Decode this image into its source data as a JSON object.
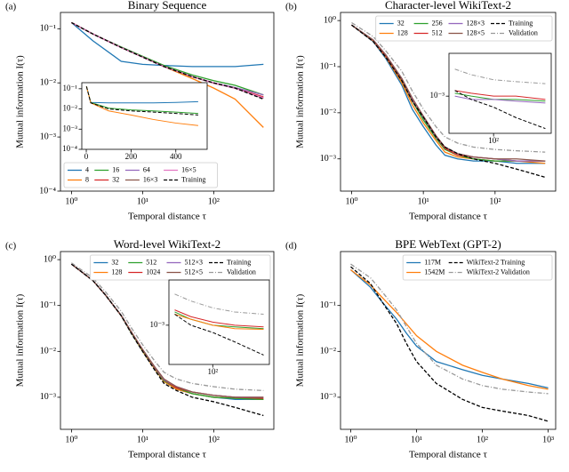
{
  "chart_data": [
    {
      "type": "line",
      "label": "(a)",
      "title": "Binary Sequence",
      "x_label": "Temporal distance τ",
      "y_label": "Mutual information I(τ)",
      "xlog": true,
      "ylog": true,
      "xlim": [
        0.7,
        700
      ],
      "ylim": [
        0.0001,
        0.2
      ],
      "xticks": [
        {
          "value": 1,
          "label": "10⁰"
        },
        {
          "value": 10,
          "label": "10¹"
        },
        {
          "value": 100,
          "label": "10²"
        }
      ],
      "yticks": [
        {
          "value": 0.1,
          "label": "10⁻¹"
        },
        {
          "value": 0.01,
          "label": "10⁻²"
        },
        {
          "value": 0.001,
          "label": "10⁻³"
        },
        {
          "value": 0.0001,
          "label": "10⁻⁴"
        }
      ],
      "legend_loc": "lower left",
      "legend_ncol": 4,
      "x": [
        1,
        2,
        5,
        10,
        20,
        50,
        100,
        200,
        500
      ],
      "series": [
        {
          "name": "4",
          "color": "#1f77b4",
          "values": [
            0.13,
            0.06,
            0.025,
            0.022,
            0.021,
            0.02,
            0.02,
            0.02,
            0.022
          ]
        },
        {
          "name": "8",
          "color": "#ff7f0e",
          "values": [
            0.13,
            0.08,
            0.045,
            0.03,
            0.02,
            0.012,
            0.008,
            0.005,
            0.0015
          ]
        },
        {
          "name": "16",
          "color": "#2ca02c",
          "values": [
            0.13,
            0.08,
            0.046,
            0.031,
            0.021,
            0.014,
            0.011,
            0.009,
            0.006
          ]
        },
        {
          "name": "32",
          "color": "#d62728",
          "values": [
            0.13,
            0.08,
            0.045,
            0.03,
            0.02,
            0.013,
            0.01,
            0.008,
            0.0055
          ]
        },
        {
          "name": "64",
          "color": "#9467bd",
          "values": [
            0.13,
            0.08,
            0.045,
            0.03,
            0.02,
            0.013,
            0.01,
            0.0082,
            0.006
          ]
        },
        {
          "name": "16×3",
          "color": "#8c564b",
          "values": [
            0.13,
            0.08,
            0.045,
            0.03,
            0.02,
            0.013,
            0.0098,
            0.008,
            0.0052
          ]
        },
        {
          "name": "16×5",
          "color": "#e377c2",
          "values": [
            0.13,
            0.08,
            0.045,
            0.03,
            0.02,
            0.013,
            0.0099,
            0.0079,
            0.0053
          ]
        },
        {
          "name": "Training",
          "color": "#000000",
          "dash": "dashed",
          "values": [
            0.13,
            0.08,
            0.045,
            0.03,
            0.02,
            0.013,
            0.01,
            0.008,
            0.005
          ]
        }
      ],
      "inset": {
        "xlog": false,
        "ylog": true,
        "xlim": [
          -20,
          540
        ],
        "ylim": [
          0.0001,
          0.2
        ],
        "xticks": [
          0,
          200,
          400
        ],
        "yticks": [
          {
            "value": 0.1,
            "label": "10⁻¹"
          },
          {
            "value": 0.01,
            "label": "10⁻²"
          },
          {
            "value": 0.001,
            "label": "10⁻³"
          },
          {
            "value": 0.0001,
            "label": "10⁻⁴"
          }
        ],
        "x": [
          1,
          20,
          100,
          200,
          300,
          400,
          500
        ],
        "series": [
          {
            "color": "#1f77b4",
            "values": [
              0.13,
              0.021,
              0.02,
              0.02,
              0.02,
              0.021,
              0.023
            ]
          },
          {
            "color": "#2ca02c",
            "values": [
              0.13,
              0.021,
              0.011,
              0.009,
              0.008,
              0.007,
              0.006
            ]
          },
          {
            "color": "#ff7f0e",
            "values": [
              0.13,
              0.02,
              0.008,
              0.005,
              0.003,
              0.002,
              0.0015
            ]
          },
          {
            "color": "#000000",
            "dash": "dashed",
            "values": [
              0.13,
              0.02,
              0.01,
              0.008,
              0.007,
              0.006,
              0.005
            ]
          }
        ]
      }
    },
    {
      "type": "line",
      "label": "(b)",
      "title": "Character-level WikiText-2",
      "x_label": "Temporal distance τ",
      "y_label": "Mutual information I(τ)",
      "xlog": true,
      "ylog": true,
      "xlim": [
        0.7,
        700
      ],
      "ylim": [
        0.0002,
        1.5
      ],
      "xticks": [
        {
          "value": 1,
          "label": "10⁰"
        },
        {
          "value": 10,
          "label": "10¹"
        },
        {
          "value": 100,
          "label": "10²"
        }
      ],
      "yticks": [
        {
          "value": 1,
          "label": "10⁰"
        },
        {
          "value": 0.1,
          "label": "10⁻¹"
        },
        {
          "value": 0.01,
          "label": "10⁻²"
        },
        {
          "value": 0.001,
          "label": "10⁻³"
        }
      ],
      "legend_loc": "upper right",
      "legend_ncol": 4,
      "x": [
        1,
        2,
        3,
        5,
        7,
        10,
        15,
        20,
        30,
        50,
        100,
        200,
        500
      ],
      "series": [
        {
          "name": "32",
          "color": "#1f77b4",
          "values": [
            0.8,
            0.35,
            0.15,
            0.04,
            0.012,
            0.005,
            0.002,
            0.0012,
            0.001,
            0.0009,
            0.0009,
            0.0008,
            0.0008
          ]
        },
        {
          "name": "128",
          "color": "#ff7f0e",
          "values": [
            0.8,
            0.36,
            0.16,
            0.045,
            0.015,
            0.006,
            0.0025,
            0.0014,
            0.0011,
            0.001,
            0.0009,
            0.0009,
            0.0008
          ]
        },
        {
          "name": "256",
          "color": "#2ca02c",
          "values": [
            0.8,
            0.37,
            0.17,
            0.05,
            0.018,
            0.007,
            0.0028,
            0.0016,
            0.0012,
            0.001,
            0.0009,
            0.0009,
            0.0009
          ]
        },
        {
          "name": "512",
          "color": "#d62728",
          "values": [
            0.8,
            0.37,
            0.17,
            0.052,
            0.019,
            0.008,
            0.003,
            0.0017,
            0.0012,
            0.0011,
            0.001,
            0.0009,
            0.0009
          ]
        },
        {
          "name": "128×3",
          "color": "#9467bd",
          "values": [
            0.8,
            0.38,
            0.18,
            0.055,
            0.02,
            0.008,
            0.003,
            0.0018,
            0.0013,
            0.0011,
            0.001,
            0.0009,
            0.0009
          ]
        },
        {
          "name": "128×5",
          "color": "#8c564b",
          "values": [
            0.8,
            0.38,
            0.18,
            0.056,
            0.021,
            0.0085,
            0.0032,
            0.0018,
            0.0013,
            0.0011,
            0.001,
            0.001,
            0.0009
          ]
        },
        {
          "name": "Training",
          "color": "#000000",
          "dash": "dashed",
          "values": [
            0.8,
            0.35,
            0.16,
            0.05,
            0.018,
            0.008,
            0.003,
            0.0018,
            0.0013,
            0.001,
            0.0008,
            0.0006,
            0.0004
          ]
        },
        {
          "name": "Validation",
          "color": "#999999",
          "dash": "dashdot",
          "values": [
            0.9,
            0.45,
            0.22,
            0.08,
            0.03,
            0.012,
            0.005,
            0.003,
            0.0022,
            0.0018,
            0.0016,
            0.0015,
            0.0014
          ]
        }
      ],
      "inset": {
        "xlog": true,
        "ylog": true,
        "xlim": [
          25,
          600
        ],
        "ylim": [
          0.0003,
          0.004
        ],
        "xticks": [
          {
            "value": 100,
            "label": "10²"
          }
        ],
        "yticks": [
          {
            "value": 0.001,
            "label": "10⁻³"
          }
        ],
        "x": [
          30,
          50,
          100,
          200,
          500
        ],
        "series": [
          {
            "color": "#999999",
            "dash": "dashdot",
            "values": [
              0.0024,
              0.002,
              0.0017,
              0.0016,
              0.0015
            ]
          },
          {
            "color": "#d62728",
            "values": [
              0.0012,
              0.0011,
              0.001,
              0.001,
              0.0009
            ]
          },
          {
            "color": "#2ca02c",
            "values": [
              0.0011,
              0.001,
              0.0009,
              0.0009,
              0.00085
            ]
          },
          {
            "color": "#9467bd",
            "values": [
              0.001,
              0.0009,
              0.0009,
              0.00085,
              0.0008
            ]
          },
          {
            "color": "#000000",
            "dash": "dashed",
            "values": [
              0.0012,
              0.0009,
              0.0007,
              0.0005,
              0.00035
            ]
          }
        ]
      }
    },
    {
      "type": "line",
      "label": "(c)",
      "title": "Word-level WikiText-2",
      "x_label": "Temporal distance τ",
      "y_label": "Mutual information I(τ)",
      "xlog": true,
      "ylog": true,
      "xlim": [
        0.7,
        700
      ],
      "ylim": [
        0.0002,
        1.5
      ],
      "xticks": [
        {
          "value": 1,
          "label": "10⁰"
        },
        {
          "value": 10,
          "label": "10¹"
        },
        {
          "value": 100,
          "label": "10²"
        }
      ],
      "yticks": [
        {
          "value": 1,
          "label": "10⁰"
        },
        {
          "value": 0.1,
          "label": "10⁻¹"
        },
        {
          "value": 0.01,
          "label": "10⁻²"
        },
        {
          "value": 0.001,
          "label": "10⁻³"
        }
      ],
      "legend_loc": "upper right",
      "legend_ncol": 4,
      "x": [
        1,
        2,
        3,
        5,
        7,
        10,
        15,
        20,
        30,
        50,
        100,
        200,
        500
      ],
      "series": [
        {
          "name": "32",
          "color": "#1f77b4",
          "values": [
            0.8,
            0.35,
            0.17,
            0.06,
            0.025,
            0.01,
            0.004,
            0.0022,
            0.0015,
            0.0012,
            0.001,
            0.0009,
            0.0009
          ]
        },
        {
          "name": "128",
          "color": "#ff7f0e",
          "values": [
            0.8,
            0.35,
            0.17,
            0.06,
            0.025,
            0.01,
            0.004,
            0.0022,
            0.0015,
            0.0012,
            0.001,
            0.00095,
            0.0009
          ]
        },
        {
          "name": "512",
          "color": "#2ca02c",
          "values": [
            0.8,
            0.35,
            0.17,
            0.06,
            0.025,
            0.0105,
            0.0042,
            0.0023,
            0.0016,
            0.0012,
            0.001,
            0.00095,
            0.0009
          ]
        },
        {
          "name": "1024",
          "color": "#d62728",
          "values": [
            0.8,
            0.35,
            0.17,
            0.06,
            0.026,
            0.011,
            0.0043,
            0.0024,
            0.0016,
            0.0013,
            0.0011,
            0.001,
            0.00095
          ]
        },
        {
          "name": "512×3",
          "color": "#9467bd",
          "values": [
            0.8,
            0.35,
            0.17,
            0.061,
            0.026,
            0.011,
            0.0044,
            0.0024,
            0.0017,
            0.0013,
            0.0011,
            0.001,
            0.001
          ]
        },
        {
          "name": "512×5",
          "color": "#8c564b",
          "values": [
            0.8,
            0.35,
            0.17,
            0.061,
            0.026,
            0.011,
            0.0045,
            0.0025,
            0.0017,
            0.0013,
            0.0011,
            0.001,
            0.001
          ]
        },
        {
          "name": "Training",
          "color": "#000000",
          "dash": "dashed",
          "values": [
            0.8,
            0.35,
            0.17,
            0.06,
            0.024,
            0.01,
            0.0038,
            0.002,
            0.0014,
            0.001,
            0.0008,
            0.0006,
            0.0004
          ]
        },
        {
          "name": "Validation",
          "color": "#999999",
          "dash": "dashdot",
          "values": [
            0.85,
            0.4,
            0.2,
            0.075,
            0.032,
            0.014,
            0.006,
            0.0035,
            0.0025,
            0.002,
            0.0017,
            0.0015,
            0.0014
          ]
        }
      ],
      "inset": {
        "xlog": true,
        "ylog": true,
        "xlim": [
          25,
          600
        ],
        "ylim": [
          0.0003,
          0.004
        ],
        "xticks": [
          {
            "value": 100,
            "label": "10²"
          }
        ],
        "yticks": [
          {
            "value": 0.001,
            "label": "10⁻³"
          }
        ],
        "x": [
          30,
          50,
          100,
          200,
          500
        ],
        "series": [
          {
            "color": "#999999",
            "dash": "dashdot",
            "values": [
              0.0026,
              0.0021,
              0.0017,
              0.0015,
              0.0014
            ]
          },
          {
            "color": "#d62728",
            "values": [
              0.0016,
              0.0013,
              0.0011,
              0.001,
              0.00095
            ]
          },
          {
            "color": "#2ca02c",
            "values": [
              0.0015,
              0.0012,
              0.001,
              0.00095,
              0.0009
            ]
          },
          {
            "color": "#ff7f0e",
            "values": [
              0.0014,
              0.0012,
              0.001,
              0.0009,
              0.00088
            ]
          },
          {
            "color": "#000000",
            "dash": "dashed",
            "values": [
              0.0014,
              0.001,
              0.0008,
              0.0006,
              0.0004
            ]
          }
        ]
      }
    },
    {
      "type": "line",
      "label": "(d)",
      "title": "BPE WebText (GPT-2)",
      "x_label": "Temporal distance τ",
      "y_label": "Mutual information I(τ)",
      "xlog": true,
      "ylog": true,
      "xlim": [
        0.7,
        1300
      ],
      "ylim": [
        0.0002,
        1.5
      ],
      "xticks": [
        {
          "value": 1,
          "label": "10⁰"
        },
        {
          "value": 10,
          "label": "10¹"
        },
        {
          "value": 100,
          "label": "10²"
        },
        {
          "value": 1000,
          "label": "10³"
        }
      ],
      "yticks": [
        {
          "value": 0.1,
          "label": "10⁻¹"
        },
        {
          "value": 0.01,
          "label": "10⁻²"
        },
        {
          "value": 0.001,
          "label": "10⁻³"
        }
      ],
      "legend_loc": "upper right",
      "legend_ncol": 2,
      "x": [
        1,
        2,
        3,
        5,
        7,
        10,
        20,
        50,
        100,
        200,
        500,
        1000
      ],
      "series": [
        {
          "name": "117M",
          "color": "#1f77b4",
          "values": [
            0.6,
            0.25,
            0.12,
            0.05,
            0.025,
            0.013,
            0.006,
            0.004,
            0.003,
            0.0025,
            0.002,
            0.0016
          ]
        },
        {
          "name": "1542M",
          "color": "#ff7f0e",
          "values": [
            0.6,
            0.28,
            0.15,
            0.07,
            0.04,
            0.022,
            0.01,
            0.005,
            0.0035,
            0.0025,
            0.0018,
            0.0015
          ]
        },
        {
          "name": "WikiText-2 Training",
          "color": "#000000",
          "dash": "dashed",
          "values": [
            0.7,
            0.3,
            0.12,
            0.04,
            0.015,
            0.006,
            0.002,
            0.0009,
            0.0006,
            0.0005,
            0.0004,
            0.0003
          ]
        },
        {
          "name": "WikiText-2 Validation",
          "color": "#999999",
          "dash": "dashdot",
          "values": [
            0.8,
            0.4,
            0.2,
            0.08,
            0.035,
            0.015,
            0.005,
            0.0025,
            0.0018,
            0.0015,
            0.0013,
            0.0012
          ]
        }
      ]
    }
  ]
}
